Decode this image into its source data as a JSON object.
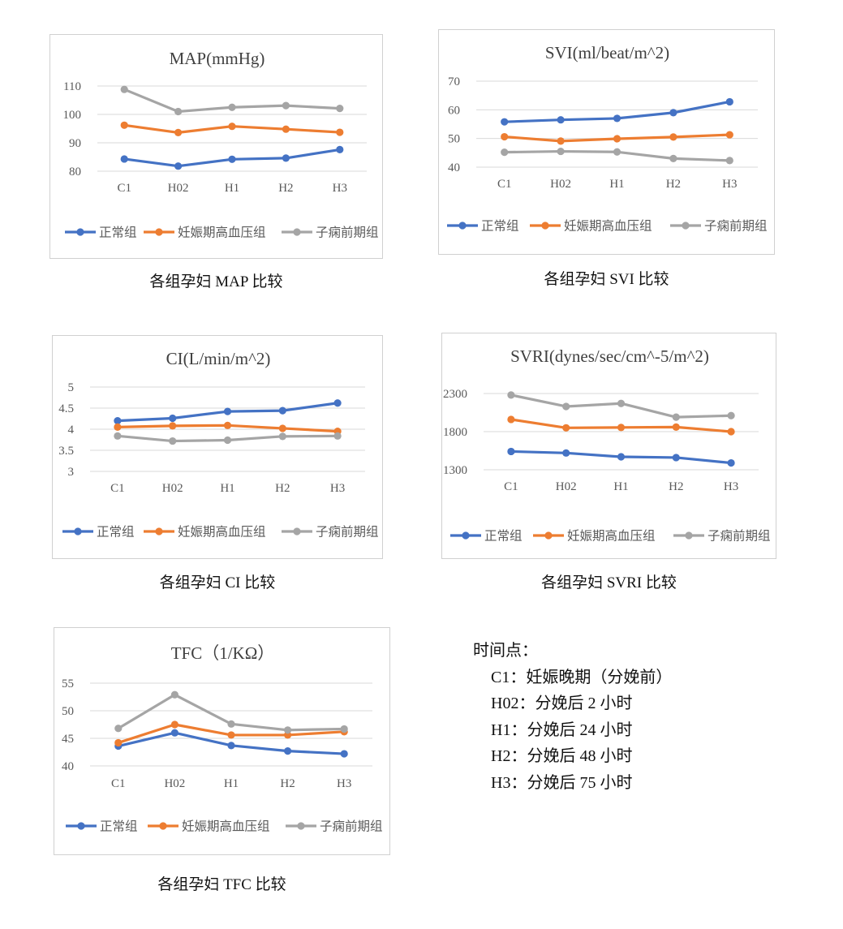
{
  "colors": {
    "normal": "#4472C4",
    "gestational": "#ED7D31",
    "preeclampsia": "#A5A5A5",
    "grid": "#d9d9d9",
    "tick": "#595959"
  },
  "legend": [
    "正常组",
    "妊娠期高血压组",
    "子痫前期组"
  ],
  "captions": [
    "各组孕妇 MAP 比较",
    "各组孕妇 SVI 比较",
    "各组孕妇 CI 比较",
    "各组孕妇 SVRI 比较",
    "各组孕妇 TFC 比较"
  ],
  "notes": {
    "title": "时间点：",
    "lines": [
      "C1：妊娠晚期（分娩前）",
      "H02：分娩后 2 小时",
      "H1：分娩后 24 小时",
      "H2：分娩后 48 小时",
      "H3：分娩后 75 小时"
    ]
  },
  "chart_data": [
    {
      "type": "line",
      "title": "MAP(mmHg)",
      "categories": [
        "C1",
        "H02",
        "H1",
        "H2",
        "H3"
      ],
      "yticks": [
        80,
        90,
        100,
        110
      ],
      "ylim": [
        80,
        110
      ],
      "grid": true,
      "legend_position": "bottom",
      "series": [
        {
          "name": "正常组",
          "values": [
            84.3,
            81.8,
            84.2,
            84.6,
            87.6
          ]
        },
        {
          "name": "妊娠期高血压组",
          "values": [
            96.2,
            93.6,
            95.8,
            94.8,
            93.7
          ]
        },
        {
          "name": "子痫前期组",
          "values": [
            108.8,
            101.0,
            102.5,
            103.1,
            102.1
          ]
        }
      ]
    },
    {
      "type": "line",
      "title": "SVI(ml/beat/m^2)",
      "categories": [
        "C1",
        "H02",
        "H1",
        "H2",
        "H3"
      ],
      "yticks": [
        40,
        50,
        60,
        70
      ],
      "ylim": [
        40,
        70
      ],
      "grid": true,
      "legend_position": "bottom",
      "series": [
        {
          "name": "正常组",
          "values": [
            55.8,
            56.5,
            57.0,
            59.0,
            62.8
          ]
        },
        {
          "name": "妊娠期高血压组",
          "values": [
            50.6,
            49.1,
            49.9,
            50.5,
            51.3
          ]
        },
        {
          "name": "子痫前期组",
          "values": [
            45.2,
            45.5,
            45.3,
            43.0,
            42.3
          ]
        }
      ]
    },
    {
      "type": "line",
      "title": "CI(L/min/m^2)",
      "categories": [
        "C1",
        "H02",
        "H1",
        "H2",
        "H3"
      ],
      "yticks": [
        3,
        3.5,
        4,
        4.5,
        5
      ],
      "ylim": [
        3,
        5
      ],
      "grid": true,
      "legend_position": "bottom",
      "series": [
        {
          "name": "正常组",
          "values": [
            4.2,
            4.26,
            4.42,
            4.44,
            4.62
          ]
        },
        {
          "name": "妊娠期高血压组",
          "values": [
            4.05,
            4.08,
            4.09,
            4.02,
            3.95
          ]
        },
        {
          "name": "子痫前期组",
          "values": [
            3.84,
            3.72,
            3.74,
            3.83,
            3.84
          ]
        }
      ]
    },
    {
      "type": "line",
      "title": "SVRI(dynes/sec/cm^-5/m^2)",
      "categories": [
        "C1",
        "H02",
        "H1",
        "H2",
        "H3"
      ],
      "yticks": [
        1300,
        1800,
        2300
      ],
      "ylim": [
        1300,
        2300
      ],
      "grid": true,
      "legend_position": "bottom",
      "series": [
        {
          "name": "正常组",
          "values": [
            1540,
            1520,
            1470,
            1460,
            1390
          ]
        },
        {
          "name": "妊娠期高血压组",
          "values": [
            1960,
            1850,
            1855,
            1860,
            1800
          ]
        },
        {
          "name": "子痫前期组",
          "values": [
            2280,
            2130,
            2170,
            1990,
            2010
          ]
        }
      ]
    },
    {
      "type": "line",
      "title": "TFC（1/KΩ）",
      "categories": [
        "C1",
        "H02",
        "H1",
        "H2",
        "H3"
      ],
      "yticks": [
        40,
        45,
        50,
        55
      ],
      "ylim": [
        40,
        55
      ],
      "grid": true,
      "legend_position": "bottom",
      "series": [
        {
          "name": "正常组",
          "values": [
            43.6,
            46.0,
            43.7,
            42.7,
            42.2
          ]
        },
        {
          "name": "妊娠期高血压组",
          "values": [
            44.2,
            47.5,
            45.6,
            45.6,
            46.2
          ]
        },
        {
          "name": "子痫前期组",
          "values": [
            46.8,
            52.9,
            47.6,
            46.5,
            46.7
          ]
        }
      ]
    }
  ]
}
